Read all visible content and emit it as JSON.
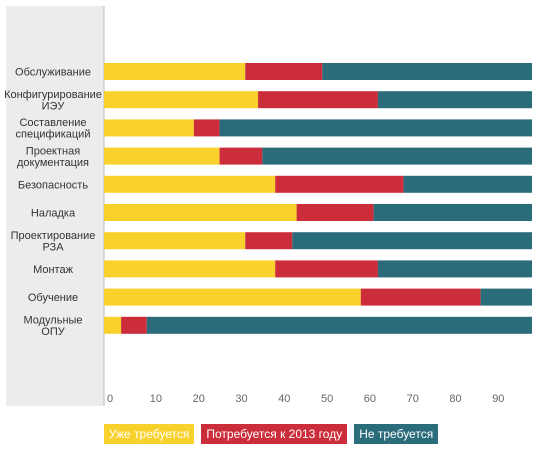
{
  "chart_data": {
    "type": "bar",
    "orientation": "horizontal",
    "stacked": true,
    "categories": [
      [
        "Обслуживание"
      ],
      [
        "Конфигурирование",
        "ИЭУ"
      ],
      [
        "Составление",
        "спецификаций"
      ],
      [
        "Проектная",
        "документация"
      ],
      [
        "Безопасность"
      ],
      [
        "Наладка"
      ],
      [
        "Проектирование",
        "РЗА"
      ],
      [
        "Монтаж"
      ],
      [
        "Обучение"
      ],
      [
        "Модульные",
        "ОПУ"
      ]
    ],
    "series": [
      {
        "name": "Уже требуется",
        "color": "#f9d12c",
        "values": [
          33,
          36,
          21,
          27,
          40,
          45,
          33,
          40,
          60,
          4
        ]
      },
      {
        "name": "Потребуется к 2013 году",
        "color": "#cc2d3a",
        "values": [
          18,
          28,
          6,
          10,
          30,
          18,
          11,
          24,
          28,
          6
        ]
      },
      {
        "name": "Не требуется",
        "color": "#2b6c7a",
        "values": [
          49,
          36,
          73,
          63,
          30,
          37,
          56,
          36,
          12,
          90
        ]
      }
    ],
    "xticks": [
      0,
      10,
      20,
      30,
      40,
      50,
      60,
      70,
      80,
      90
    ],
    "xlim": [
      0,
      100
    ],
    "title": "",
    "xlabel": "",
    "ylabel": "",
    "legend_position": "bottom-center",
    "background": "#ececec"
  }
}
